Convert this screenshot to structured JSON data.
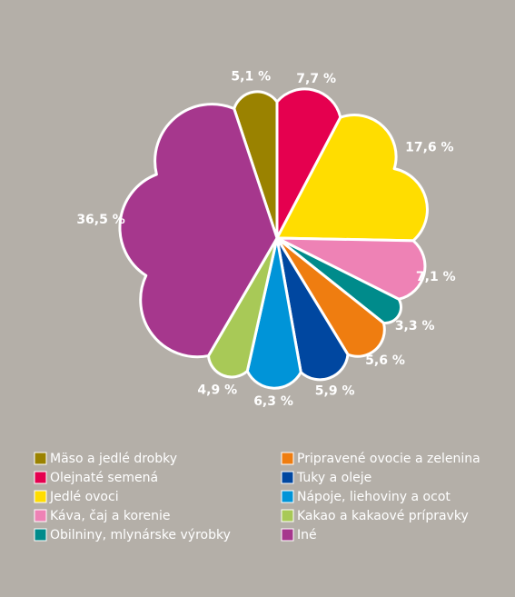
{
  "chart_data": {
    "type": "pie",
    "categories": [
      "Mäso a jedlé drobky",
      "Olejnaté semená",
      "Jedlé ovoci",
      "Káva, čaj a korenie",
      "Obilniny, mlynárske výrobky",
      "Pripravené ovocie a zelenina",
      "Tuky a oleje",
      "Nápoje, liehoviny a ocot",
      "Kakao a kakaové prípravky",
      "Iné"
    ],
    "values": [
      5.1,
      7.7,
      17.6,
      7.1,
      3.3,
      5.6,
      5.9,
      6.3,
      4.9,
      36.5
    ],
    "value_labels": [
      "5,1 %",
      "7,7 %",
      "17,6 %",
      "7,1 %",
      "3,3 %",
      "5,6 %",
      "5,9 %",
      "6,3 %",
      "4,9 %",
      "36,5 %"
    ],
    "colors": [
      "#9a8200",
      "#e5004f",
      "#ffdd00",
      "#ee82b5",
      "#008b8b",
      "#ef7d10",
      "#0047a0",
      "#0094d8",
      "#a8c957",
      "#a6378d"
    ]
  }
}
